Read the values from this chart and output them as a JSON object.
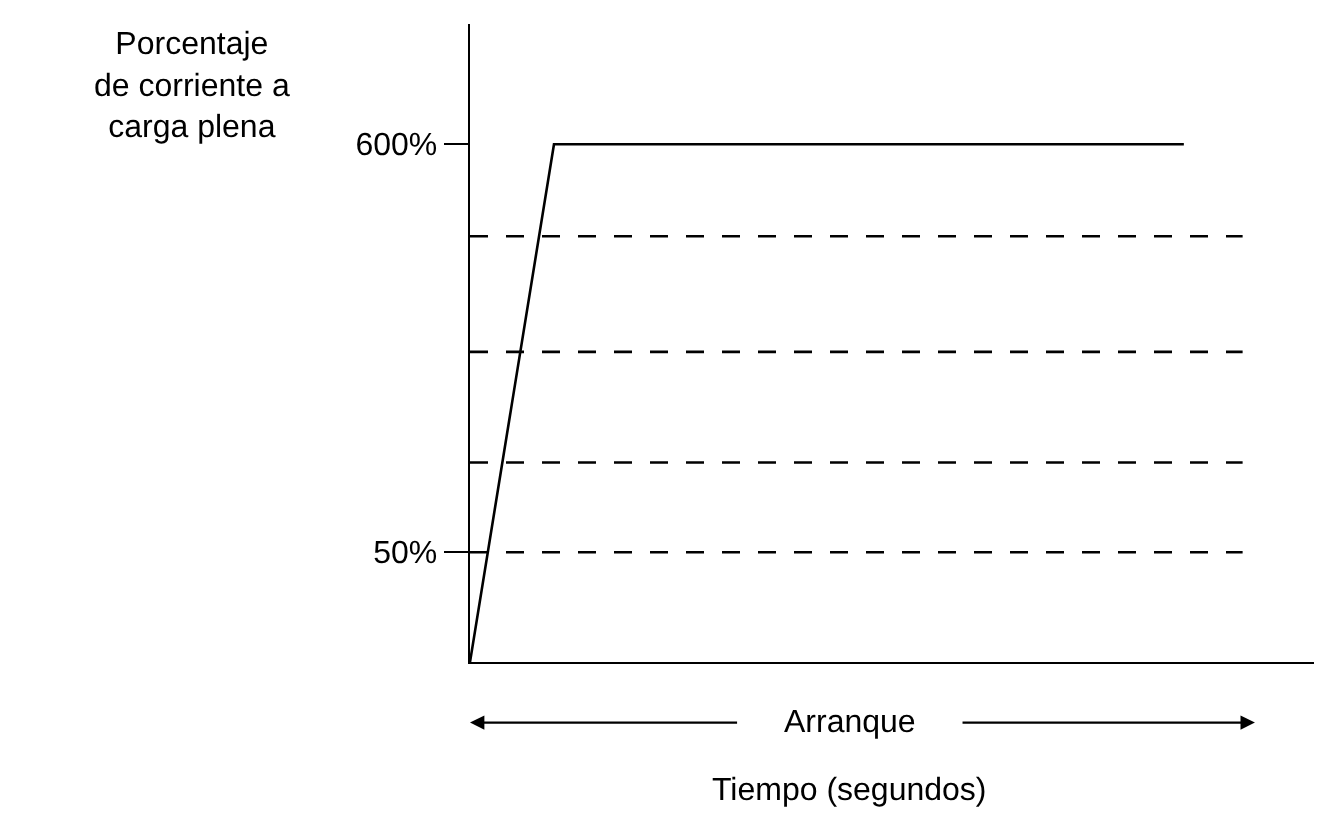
{
  "chart_data": {
    "type": "line",
    "ylabel": "Porcentaje\nde corriente a\ncarga plena",
    "xlabel": "Tiempo (segundos)",
    "annotations": [
      "Arranque"
    ],
    "categories": [
      null,
      null,
      null,
      null,
      null,
      null,
      null,
      null,
      null,
      null,
      null,
      null,
      null,
      null,
      null,
      null,
      null,
      null,
      null,
      null
    ],
    "ylim": [
      -98,
      762
    ],
    "yticks": [
      {
        "value": 600,
        "label": "600%"
      },
      {
        "value": 50,
        "label": "50%"
      }
    ],
    "tick_labels": "y",
    "marker": "none",
    "series": [
      {
        "color": "#000000",
        "values": [
          -98,
          251,
          600,
          600,
          600,
          600,
          600,
          600,
          600,
          600,
          600,
          600,
          600,
          600,
          600,
          600,
          600,
          600,
          null,
          null
        ]
      }
    ],
    "ref_lines": [
      {
        "axis": "y",
        "value": 476,
        "color": "#000000",
        "line_style": "dashed"
      },
      {
        "axis": "y",
        "value": 320,
        "color": "#000000",
        "line_style": "dashed"
      },
      {
        "axis": "y",
        "value": 171,
        "color": "#000000",
        "line_style": "dashed"
      },
      {
        "axis": "y",
        "value": 50,
        "color": "#000000",
        "line_style": "dashed"
      }
    ]
  }
}
